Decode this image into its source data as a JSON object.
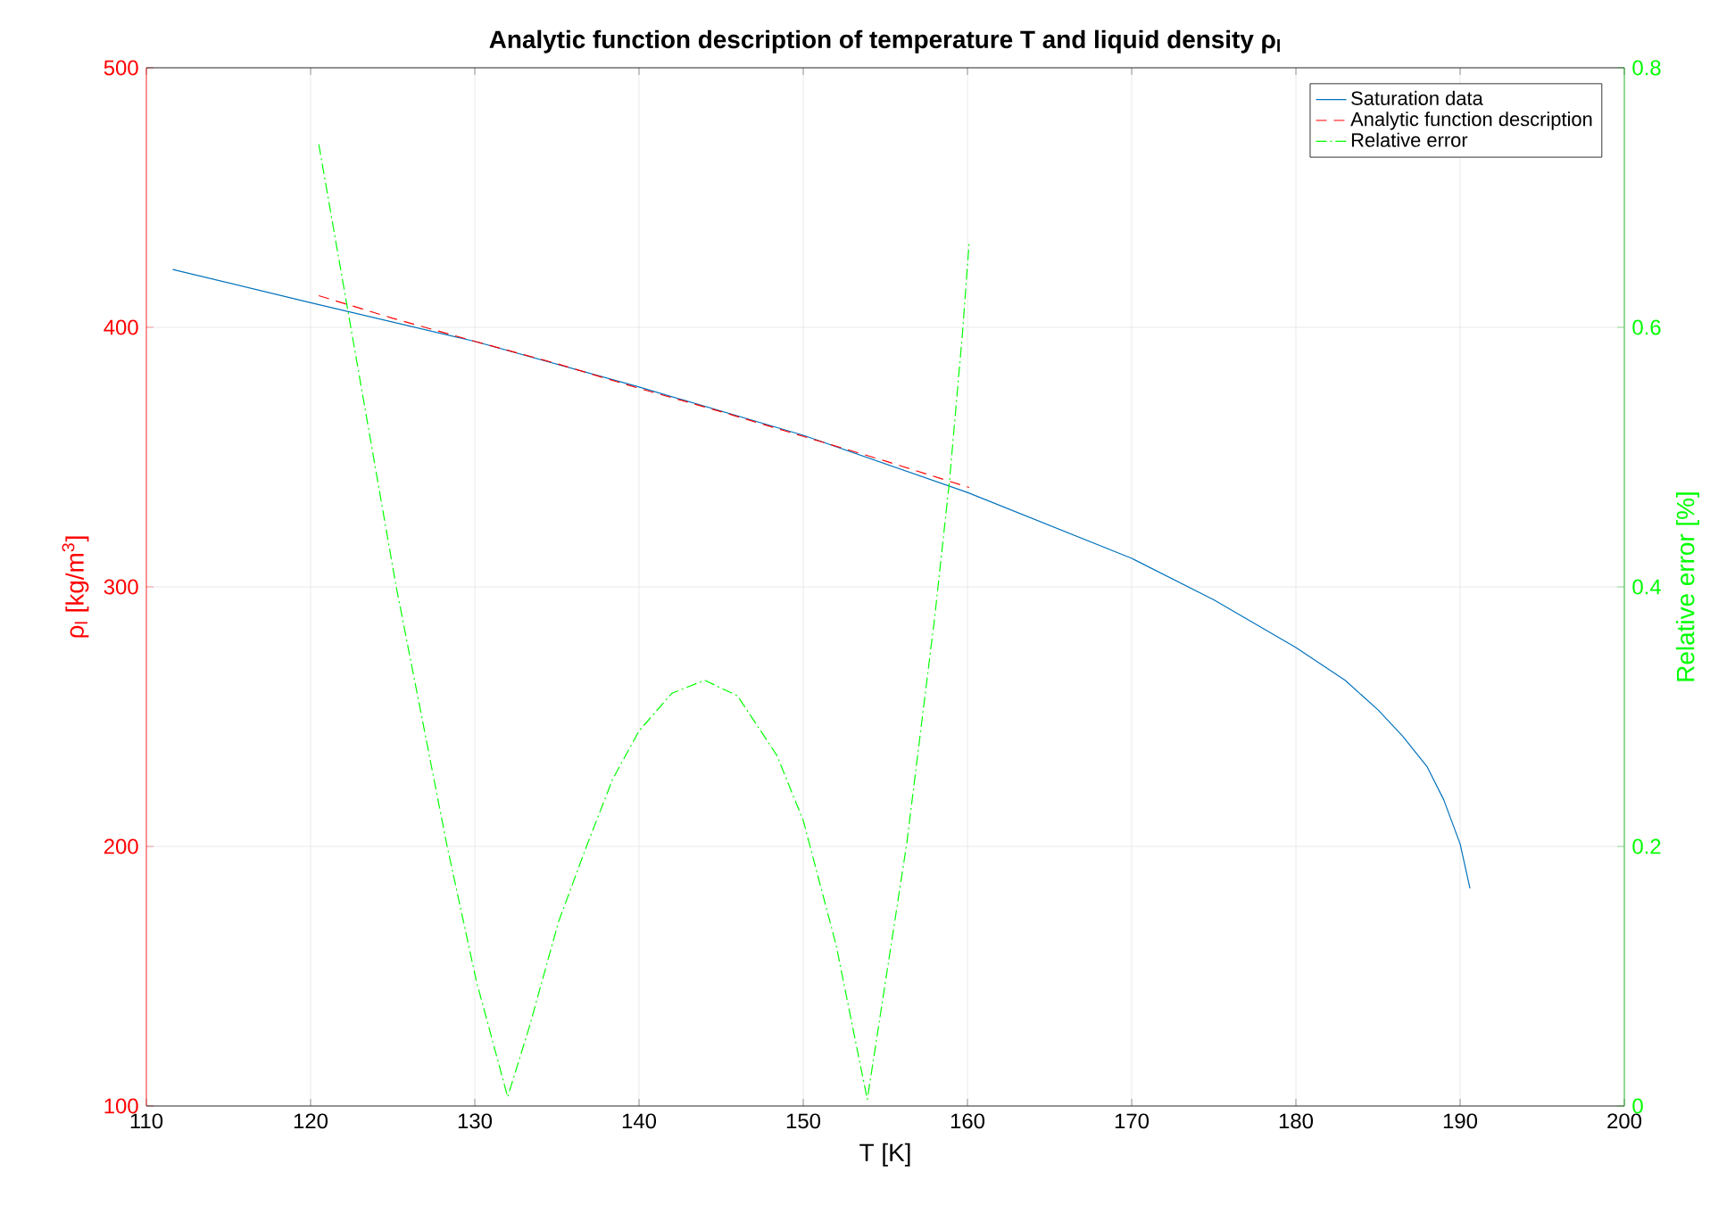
{
  "chart_data": {
    "type": "line",
    "title": "Analytic function description of temperature T and liquid density ρ$_{l}$",
    "xlabel": "T [K]",
    "ylabel": "ρ$_{l}$ [kg/m$^{3}$]",
    "y2label": "Relative error [%]",
    "xlim": [
      110,
      200
    ],
    "xticks": [
      110,
      120,
      130,
      140,
      150,
      160,
      170,
      180,
      190,
      200
    ],
    "ylim": [
      100,
      500
    ],
    "yticks": [
      100,
      200,
      300,
      400,
      500
    ],
    "y2lim": [
      0,
      0.8
    ],
    "y2ticks": [
      0,
      0.2,
      0.4,
      0.6,
      0.8
    ],
    "grid": true,
    "legend": "top right",
    "series": [
      {
        "name": "Saturation data",
        "color": "#0072bd",
        "line_style": "solid",
        "x": [
          111.6,
          120,
          130,
          140,
          150,
          160,
          170,
          175,
          180,
          183,
          185,
          186.5,
          188,
          189,
          190,
          190.6
        ],
        "values": [
          422.3,
          409.5,
          394.6,
          377,
          358.4,
          336.4,
          311,
          295,
          276.6,
          264,
          252.6,
          242.5,
          230.6,
          218,
          201,
          183.8
        ]
      },
      {
        "name": "Analytic function description",
        "color": "#ff0000",
        "line_style": "dashed",
        "x": [
          120.5,
          125,
          130,
          135,
          140,
          145,
          150,
          155,
          160.1
        ],
        "values": [
          412.2,
          403.5,
          394.6,
          386,
          376.5,
          367.5,
          358,
          348.5,
          338.3
        ]
      },
      {
        "name": "Relative error",
        "color": "#00ff00",
        "line_style": "dashdot",
        "axis": "y2",
        "x": [
          120.5,
          125.2,
          128.3,
          130.1,
          132.0,
          133.3,
          135.1,
          136.8,
          138.4,
          140.0,
          142.0,
          144.0,
          146.0,
          148.4,
          150.0,
          152.0,
          153.9,
          156.3,
          158.0,
          158.9,
          159.7,
          160.1
        ],
        "values": [
          0.741,
          0.401,
          0.201,
          0.096,
          0.007,
          0.06,
          0.142,
          0.2,
          0.252,
          0.289,
          0.318,
          0.328,
          0.316,
          0.27,
          0.22,
          0.124,
          0.005,
          0.202,
          0.376,
          0.481,
          0.596,
          0.665
        ]
      }
    ]
  }
}
